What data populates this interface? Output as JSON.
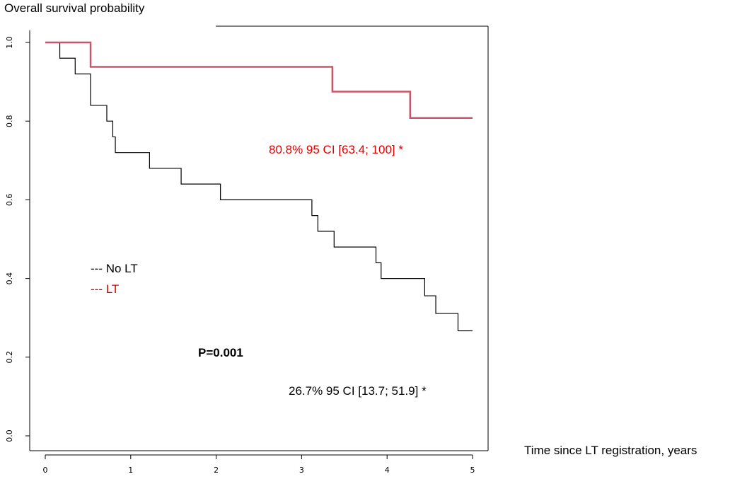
{
  "chart_data": {
    "type": "line",
    "subtype": "kaplan-meier step",
    "ylabel": "Overall survival probability",
    "xlabel": "Time since LT registration, years",
    "xlim": [
      0,
      5
    ],
    "ylim": [
      0,
      1
    ],
    "x_ticks": [
      "0",
      "1",
      "2",
      "3",
      "4",
      "5"
    ],
    "y_ticks": [
      "0.0",
      "0.2",
      "0.4",
      "0.6",
      "0.8",
      "1.0"
    ],
    "grid": false,
    "legend": [
      {
        "label": "--- No LT",
        "color": "#000000"
      },
      {
        "label": "--- LT",
        "color": "#e00000"
      }
    ],
    "series": [
      {
        "name": "No LT",
        "color": "#000000",
        "steps": [
          [
            0,
            1.0
          ],
          [
            0.17,
            0.96
          ],
          [
            0.35,
            0.92
          ],
          [
            0.53,
            0.84
          ],
          [
            0.72,
            0.8
          ],
          [
            0.79,
            0.76
          ],
          [
            0.82,
            0.72
          ],
          [
            1.22,
            0.68
          ],
          [
            1.59,
            0.64
          ],
          [
            2.05,
            0.6
          ],
          [
            3.12,
            0.56
          ],
          [
            3.19,
            0.52
          ],
          [
            3.38,
            0.48
          ],
          [
            3.87,
            0.44
          ],
          [
            3.93,
            0.4
          ],
          [
            4.44,
            0.356
          ],
          [
            4.57,
            0.311
          ],
          [
            4.83,
            0.267
          ],
          [
            5.0,
            0.267
          ]
        ]
      },
      {
        "name": "LT",
        "color": "#c8566b",
        "steps": [
          [
            0,
            1.0
          ],
          [
            0.53,
            0.938
          ],
          [
            3.36,
            0.875
          ],
          [
            4.27,
            0.808
          ],
          [
            5.0,
            0.808
          ]
        ]
      }
    ],
    "annotations": [
      {
        "text": "80.8% 95 CI [63.4; 100] *",
        "color": "#e00000"
      },
      {
        "text": "P=0.001",
        "color": "#000000",
        "bold": true
      },
      {
        "text": "26.7% 95 CI [13.7; 51.9] *",
        "color": "#000000"
      }
    ]
  }
}
